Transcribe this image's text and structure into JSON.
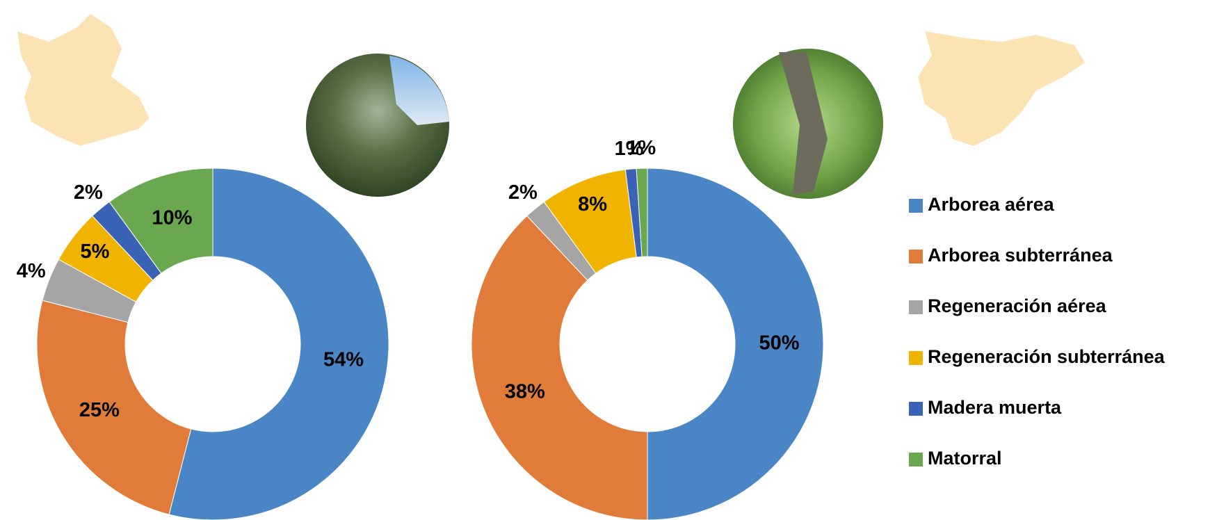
{
  "chart_data": [
    {
      "type": "pie",
      "categories": [
        "Arborea aérea",
        "Arborea subterránea",
        "Regeneración aérea",
        "Regeneración subterránea",
        "Madera muerta",
        "Matorral"
      ],
      "colors": [
        "#4a86c5",
        "#e07b39",
        "#a5a5a5",
        "#f0b400",
        "#3a62b5",
        "#6aa84f"
      ],
      "values": [
        54,
        25,
        4,
        5,
        2,
        10
      ],
      "value_labels": [
        "54%",
        "25%",
        "4%",
        "5%",
        "2%",
        "10%"
      ]
    },
    {
      "type": "pie",
      "values": [
        50,
        38,
        2,
        8,
        1,
        1
      ],
      "value_labels": [
        "50%",
        "38%",
        "2%",
        "8%",
        "1%",
        "1%"
      ]
    }
  ]
}
